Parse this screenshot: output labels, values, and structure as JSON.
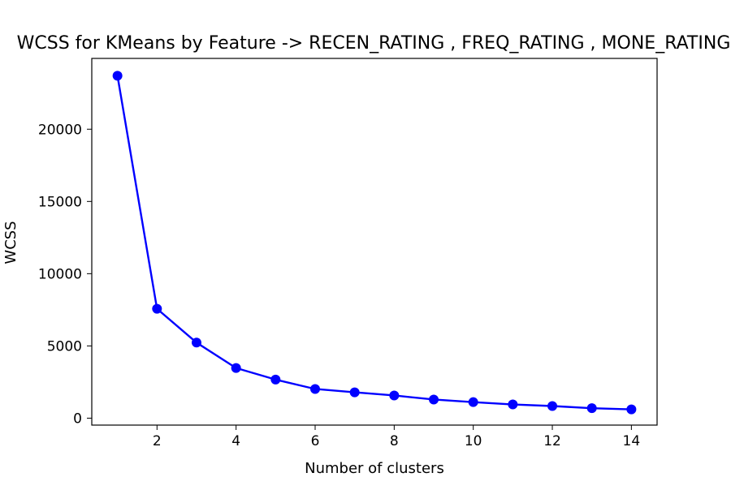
{
  "chart_data": {
    "type": "line",
    "title": "WCSS for KMeans by Feature -> RECEN_RATING , FREQ_RATING , MONE_RATING",
    "xlabel": "Number of clusters",
    "ylabel": "WCSS",
    "x": [
      1,
      2,
      3,
      4,
      5,
      6,
      7,
      8,
      9,
      10,
      11,
      12,
      13,
      14
    ],
    "series": [
      {
        "values": [
          23700,
          7570,
          5230,
          3470,
          2670,
          2020,
          1790,
          1570,
          1290,
          1110,
          950,
          840,
          690,
          610
        ],
        "color": "#0000ff",
        "marker": "circle"
      }
    ],
    "xlim": [
      0.35,
      14.65
    ],
    "ylim": [
      -480,
      24900
    ],
    "xticks": [
      2,
      4,
      6,
      8,
      10,
      12,
      14
    ],
    "yticks": [
      0,
      5000,
      10000,
      15000,
      20000
    ],
    "grid": false,
    "legend": "none"
  }
}
